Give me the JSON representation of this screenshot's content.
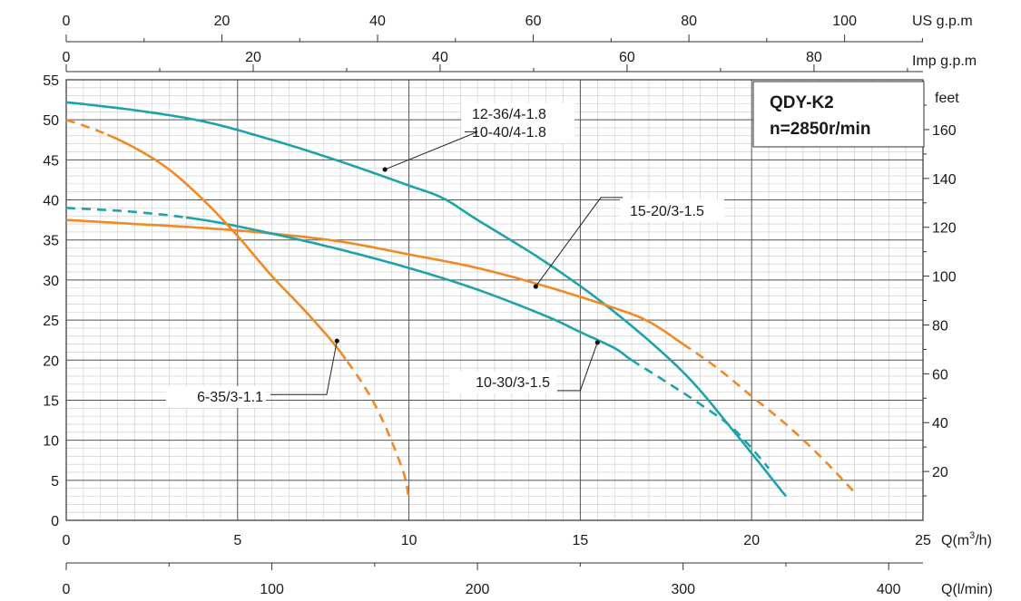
{
  "chart_data": {
    "type": "line",
    "title": "QDY-K2",
    "subtitle": "n=2850r/min",
    "grid": true,
    "axes": {
      "x_main": {
        "unit": "Q(m³/h)",
        "unit_base": "Q(m",
        "unit_sup": "3",
        "unit_end": "/h)",
        "range": [
          0,
          25
        ],
        "ticks": [
          0,
          5,
          10,
          15,
          20,
          25
        ]
      },
      "x_lmin": {
        "unit": "Q(l/min)",
        "range": [
          0,
          416.67
        ],
        "ticks": [
          0,
          100,
          200,
          300,
          400
        ]
      },
      "x_us": {
        "unit": "US g.p.m",
        "range": [
          0,
          110.07
        ],
        "ticks": [
          0,
          20,
          40,
          60,
          80,
          100
        ]
      },
      "x_imp": {
        "unit": "Imp g.p.m",
        "range": [
          0,
          91.66
        ],
        "ticks": [
          0,
          20,
          40,
          60,
          80
        ]
      },
      "y_main": {
        "unit": "",
        "range": [
          0,
          55
        ],
        "ticks": [
          0,
          5,
          10,
          15,
          20,
          25,
          30,
          35,
          40,
          45,
          50,
          55
        ]
      },
      "y_feet": {
        "unit": "feet",
        "range": [
          0,
          180.4
        ],
        "ticks": [
          20,
          40,
          60,
          80,
          100,
          120,
          140,
          160
        ]
      }
    },
    "series": [
      {
        "name": "12-36/4-1.8 10-40/4-1.8",
        "color": "#1fa3ab",
        "points": [
          [
            0,
            52.2
          ],
          [
            2,
            51.2
          ],
          [
            4,
            49.8
          ],
          [
            6,
            47.5
          ],
          [
            8,
            44.8
          ],
          [
            10,
            41.8
          ],
          [
            11,
            40.2
          ],
          [
            12,
            37.5
          ],
          [
            14,
            32.2
          ],
          [
            16,
            26.0
          ],
          [
            18,
            18.5
          ],
          [
            19.5,
            11.0
          ],
          [
            21,
            3.0
          ]
        ],
        "dashed_from": null
      },
      {
        "name": "15-20/3-1.5",
        "color": "#f08a24",
        "points": [
          [
            0,
            37.5
          ],
          [
            2,
            37.0
          ],
          [
            4,
            36.5
          ],
          [
            6,
            35.8
          ],
          [
            8,
            34.8
          ],
          [
            10,
            33.2
          ],
          [
            12,
            31.5
          ],
          [
            14,
            29.2
          ],
          [
            16,
            26.5
          ],
          [
            17,
            24.8
          ],
          [
            18,
            22.0
          ],
          [
            19,
            19.0
          ],
          [
            20,
            15.5
          ],
          [
            21,
            12.0
          ],
          [
            22,
            8.0
          ],
          [
            23,
            3.5
          ]
        ],
        "dashed_from": 18.0
      },
      {
        "name": "10-30/3-1.5",
        "color": "#1fa3ab",
        "points": [
          [
            0,
            39.0
          ],
          [
            2,
            38.5
          ],
          [
            4,
            37.5
          ],
          [
            6,
            35.8
          ],
          [
            8,
            33.8
          ],
          [
            10,
            31.5
          ],
          [
            12,
            28.8
          ],
          [
            14,
            25.5
          ],
          [
            15,
            23.5
          ],
          [
            16,
            21.5
          ],
          [
            16.5,
            20.0
          ],
          [
            17.5,
            17.3
          ],
          [
            18.5,
            14.5
          ],
          [
            19.5,
            11.3
          ],
          [
            20.5,
            6.5
          ]
        ],
        "dashed_from_start": 3.5,
        "dashed_from": 16.5
      },
      {
        "name": "6-35/3-1.1",
        "color": "#f08a24",
        "points": [
          [
            0,
            50.0
          ],
          [
            1,
            48.5
          ],
          [
            2,
            46.5
          ],
          [
            3,
            43.8
          ],
          [
            4,
            40.0
          ],
          [
            5,
            35.5
          ],
          [
            6,
            30.5
          ],
          [
            7,
            26.0
          ],
          [
            8,
            21.0
          ],
          [
            9,
            14.5
          ],
          [
            9.8,
            6.5
          ],
          [
            10,
            2.5
          ]
        ],
        "dashed_from_start": 1.2,
        "dashed_from": 8.2
      }
    ],
    "annotations": [
      {
        "text": "12-36/4-1.8",
        "text2": "10-40/4-1.8",
        "series": 0,
        "point": [
          9.3,
          43.8
        ],
        "anchor": "label-right"
      },
      {
        "text": "15-20/3-1.5",
        "series": 1,
        "point": [
          13.7,
          29.2
        ],
        "anchor": "label-right"
      },
      {
        "text": "10-30/3-1.5",
        "series": 2,
        "point": [
          15.5,
          22.2
        ],
        "anchor": "label-left"
      },
      {
        "text": "6-35/3-1.1",
        "series": 3,
        "point": [
          7.9,
          22.4
        ],
        "anchor": "label-left"
      }
    ]
  }
}
